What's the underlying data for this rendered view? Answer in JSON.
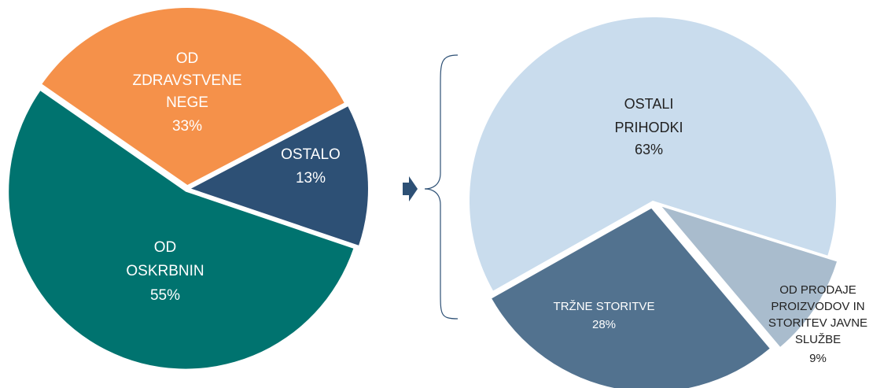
{
  "chart_data": [
    {
      "type": "pie",
      "labels": [
        [
          "OD",
          "OSKRBNIN"
        ],
        [
          "OD",
          "ZDRAVSTVENE",
          "NEGE"
        ],
        [
          "OSTALO"
        ]
      ],
      "values": [
        55,
        33,
        13
      ],
      "value_labels": [
        "55%",
        "33%",
        "13%"
      ],
      "colors": [
        "#00736f",
        "#f5914a",
        "#2d5075"
      ]
    },
    {
      "type": "pie",
      "labels": [
        [
          "TRŽNE STORITVE"
        ],
        [
          "OD PRODAJE",
          "PROIZVODOV IN",
          "STORITEV JAVNE",
          "SLUŽBE"
        ],
        [
          "OSTALI",
          "PRIHODKI"
        ]
      ],
      "values": [
        28,
        9,
        63
      ],
      "value_labels": [
        "28%",
        "9%",
        "63%"
      ],
      "colors": [
        "#52728f",
        "#a9bccd",
        "#c9dced"
      ]
    }
  ]
}
